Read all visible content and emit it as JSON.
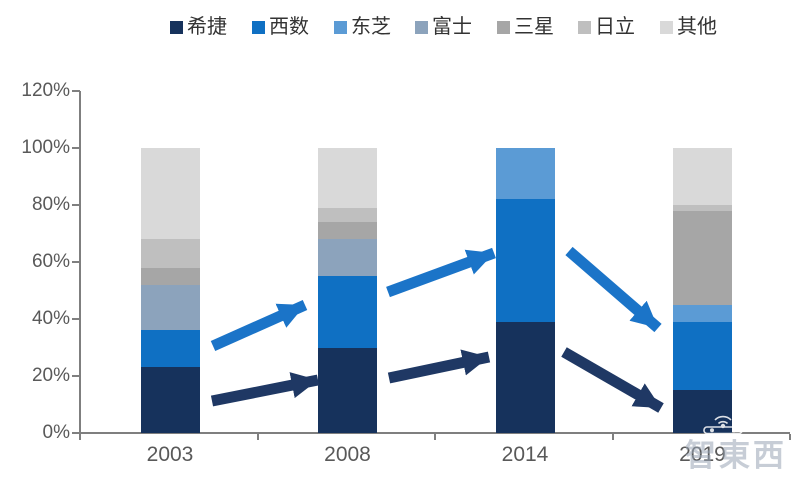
{
  "chart_data": {
    "type": "bar",
    "stacked": true,
    "title": "",
    "categories": [
      "2003",
      "2008",
      "2014",
      "2019"
    ],
    "series": [
      {
        "name": "希捷",
        "color": "#16325C",
        "values": [
          23,
          30,
          39,
          15
        ]
      },
      {
        "name": "西数",
        "color": "#0F70C3",
        "values": [
          13,
          25,
          43,
          24
        ]
      },
      {
        "name": "东芝",
        "color": "#5B9BD5",
        "values": [
          0,
          0,
          18,
          6
        ]
      },
      {
        "name": "富士",
        "color": "#8CA3BC",
        "values": [
          16,
          13,
          0,
          0
        ]
      },
      {
        "name": "三星",
        "color": "#A6A6A6",
        "values": [
          6,
          6,
          0,
          33
        ]
      },
      {
        "name": "日立",
        "color": "#BFBFBF",
        "values": [
          10,
          5,
          0,
          2
        ]
      },
      {
        "name": "其他",
        "color": "#D9D9D9",
        "values": [
          32,
          21,
          0,
          20
        ]
      }
    ],
    "unit": "%",
    "ylim": [
      0,
      120
    ],
    "yticks": [
      {
        "value": 0,
        "label": "0%"
      },
      {
        "value": 20,
        "label": "20%"
      },
      {
        "value": 40,
        "label": "40%"
      },
      {
        "value": 60,
        "label": "60%"
      },
      {
        "value": 80,
        "label": "80%"
      },
      {
        "value": 100,
        "label": "100%"
      },
      {
        "value": 120,
        "label": "120%"
      }
    ],
    "legend_position": "top",
    "grid": false,
    "axis_color": "#7F7F7F",
    "tick_label_color": "#595959",
    "annotations": {
      "arrows": [
        {
          "trend": "up",
          "color": "#1B74C8",
          "from": [
            213,
            346
          ],
          "to": [
            305,
            305
          ]
        },
        {
          "trend": "up",
          "color": "#1F3864",
          "from": [
            212,
            401
          ],
          "to": [
            318,
            380
          ]
        },
        {
          "trend": "up",
          "color": "#1B74C8",
          "from": [
            388,
            292
          ],
          "to": [
            494,
            253
          ]
        },
        {
          "trend": "up",
          "color": "#1F3864",
          "from": [
            389,
            378
          ],
          "to": [
            489,
            357
          ]
        },
        {
          "trend": "down",
          "color": "#1B74C8",
          "from": [
            569,
            251
          ],
          "to": [
            658,
            328
          ]
        },
        {
          "trend": "down",
          "color": "#1F3864",
          "from": [
            564,
            352
          ],
          "to": [
            661,
            408
          ]
        }
      ]
    }
  },
  "watermark": {
    "text": "智東西"
  }
}
